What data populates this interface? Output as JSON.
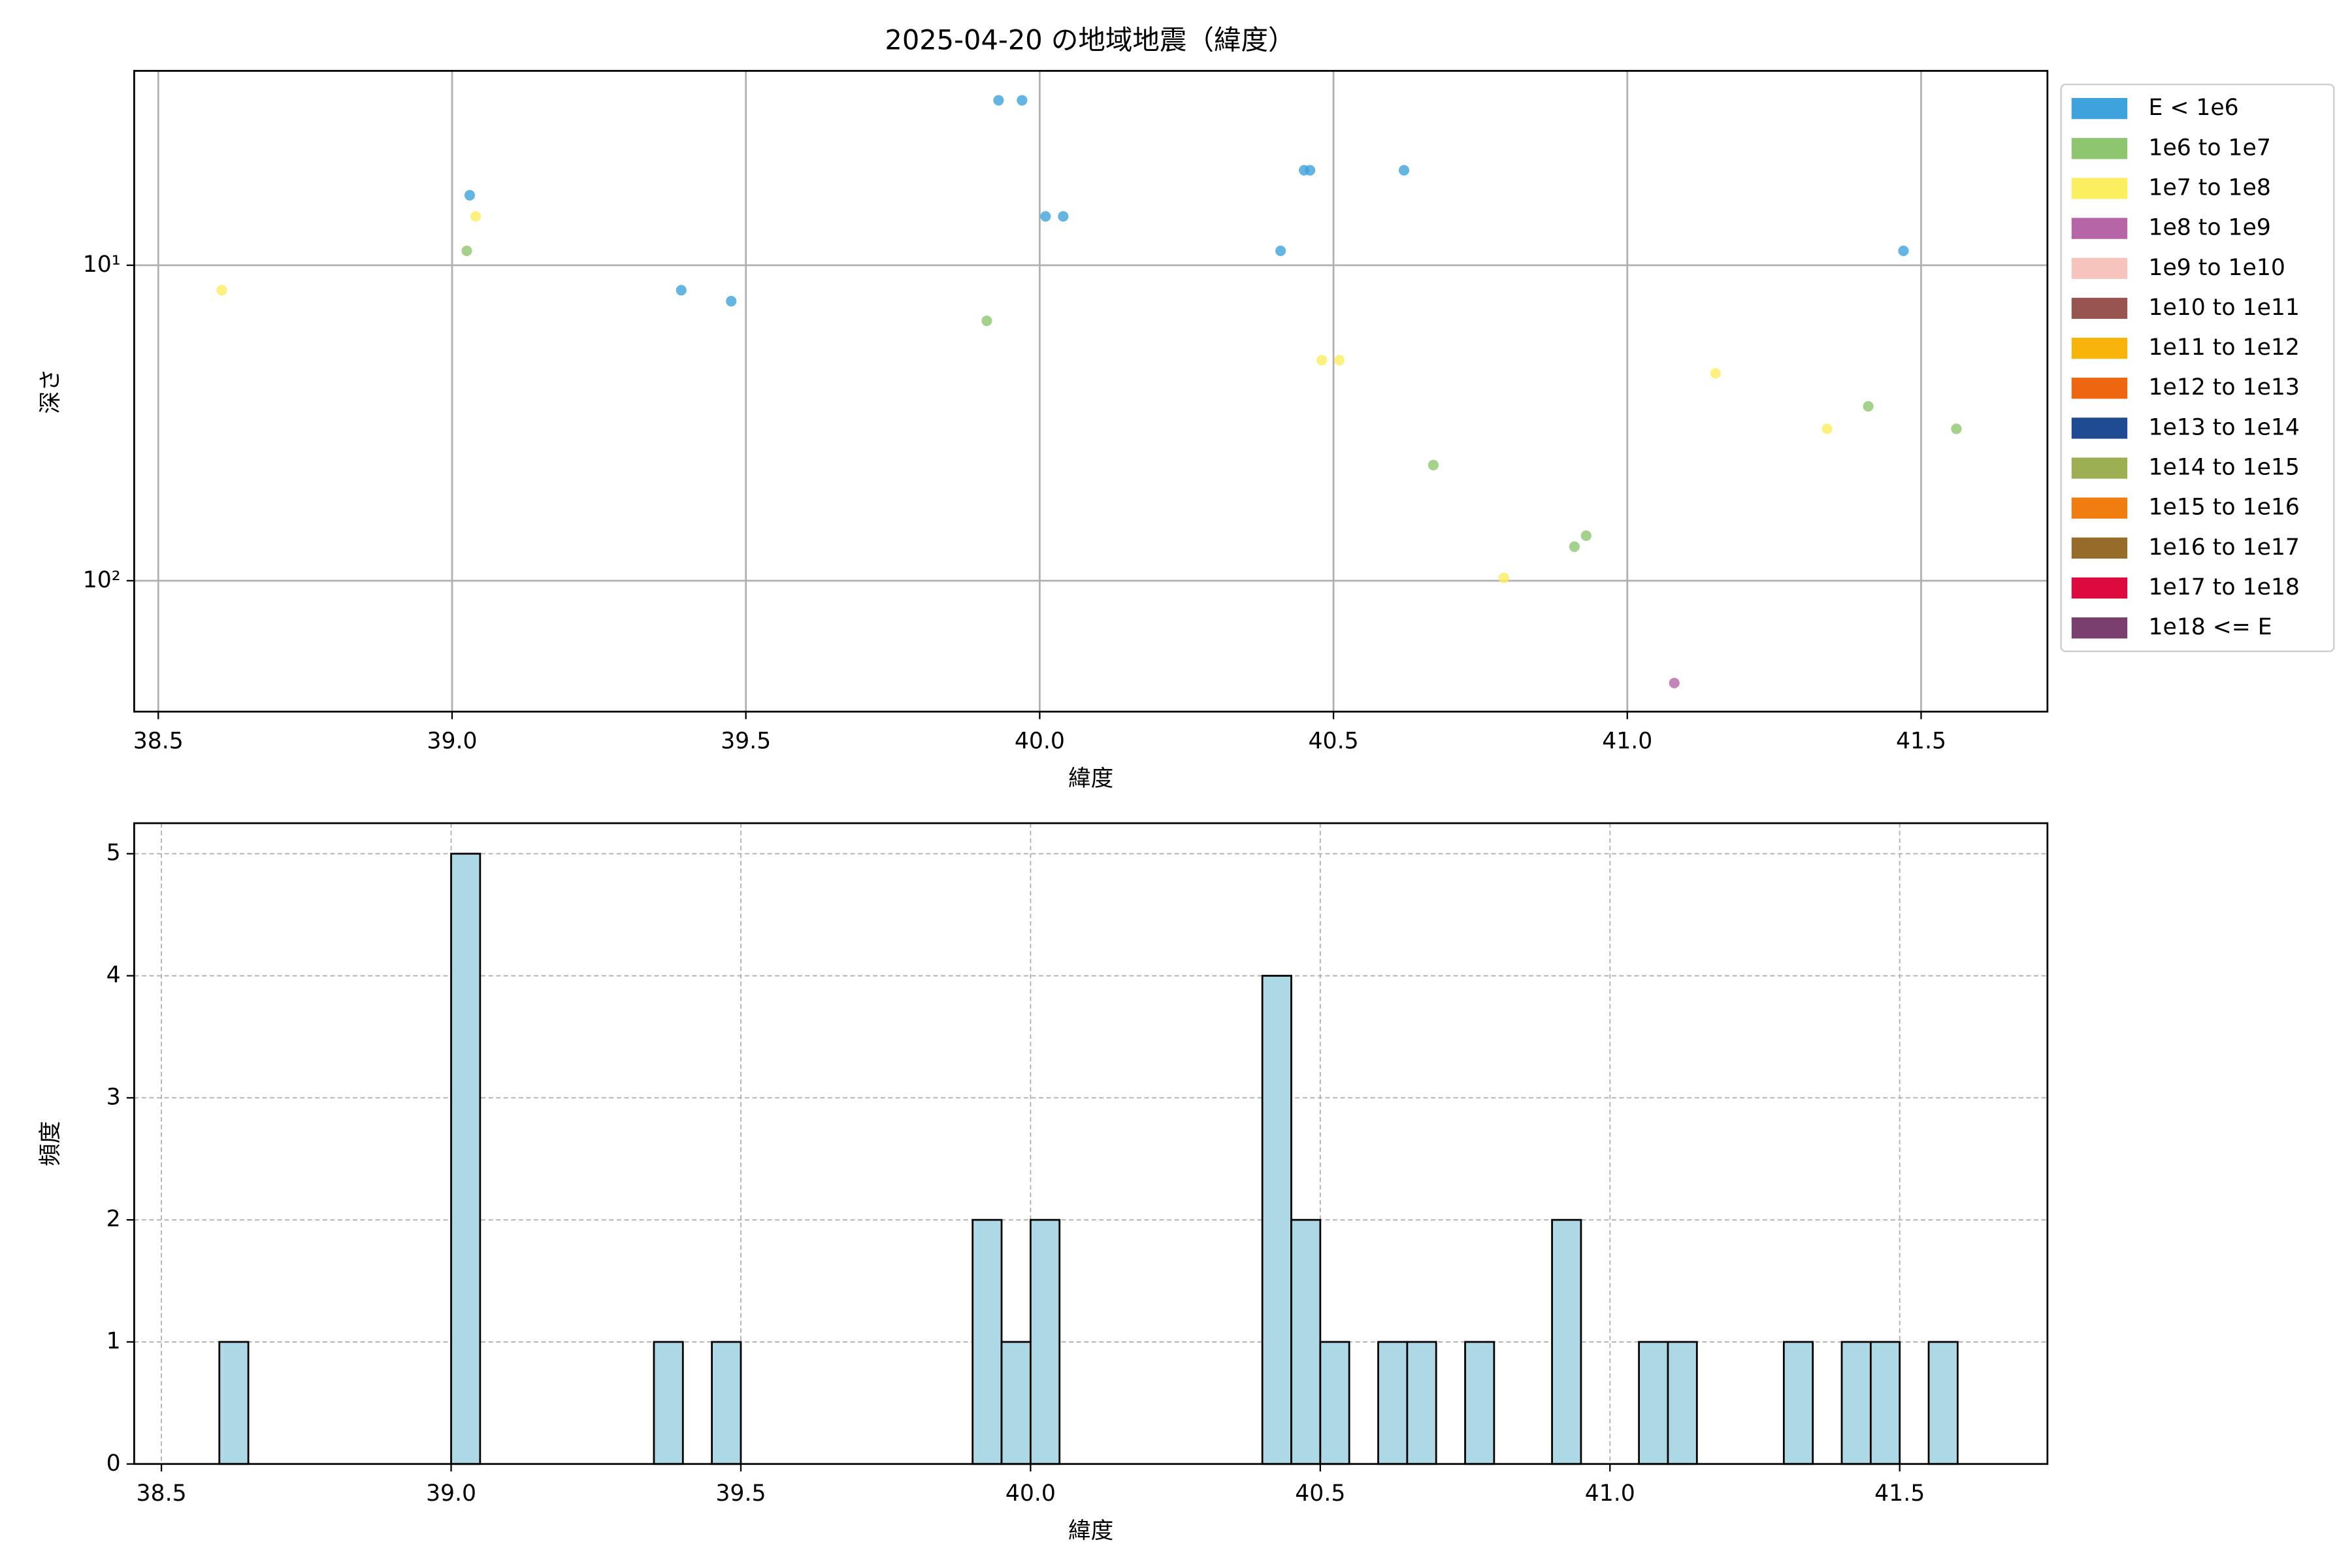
{
  "chart_data": [
    {
      "type": "scatter",
      "title": "2025-04-20 の地域地震（緯度）",
      "x_label": "緯度",
      "y_label": "深さ",
      "yscale": "log",
      "grid": true,
      "legend": "outside right",
      "xlim": [
        38.459,
        41.715
      ],
      "ylim": [
        260,
        2.42
      ],
      "xticks": [
        38.5,
        {
          "value": 39,
          "label": "39.0"
        },
        39.5,
        {
          "value": 40,
          "label": "40.0"
        },
        40.5,
        {
          "value": 41,
          "label": "41.0"
        },
        41.5
      ],
      "yticks": [
        {
          "value": 10,
          "label": "10¹"
        },
        {
          "value": 100,
          "label": "10²"
        }
      ],
      "series": [
        {
          "name": "E < 1e6",
          "color": "#3ea3dc",
          "x": [
            39.03,
            39.39,
            39.475,
            39.93,
            39.97,
            40.01,
            40.04,
            40.45,
            40.46,
            40.41,
            40.62,
            41.47
          ],
          "values": [
            6,
            12,
            13,
            3,
            3,
            7,
            7,
            5,
            5,
            9,
            5,
            9
          ]
        },
        {
          "name": "1e6 to 1e7",
          "color": "#8dc66e",
          "x": [
            39.025,
            39.91,
            40.67,
            40.91,
            40.93,
            41.41,
            41.56
          ],
          "values": [
            9,
            15,
            43,
            78,
            72,
            28,
            33
          ]
        },
        {
          "name": "1e7 to 1e8",
          "color": "#fbee5f",
          "x": [
            38.608,
            39.04,
            40.48,
            40.51,
            40.79,
            41.15,
            41.34
          ],
          "values": [
            12,
            7,
            20,
            20,
            98,
            22,
            33
          ]
        },
        {
          "name": "1e8 to 1e9",
          "color": "#b666a6",
          "x": [
            41.08
          ],
          "values": [
            211
          ]
        },
        {
          "name": "1e9 to 1e10",
          "color": "#f6c3bd",
          "x": [],
          "values": []
        },
        {
          "name": "1e10 to 1e11",
          "color": "#98554f",
          "x": [],
          "values": []
        },
        {
          "name": "1e11 to 1e12",
          "color": "#f8b40a",
          "x": [],
          "values": []
        },
        {
          "name": "1e12 to 1e13",
          "color": "#ef6611",
          "x": [],
          "values": []
        },
        {
          "name": "1e13 to 1e14",
          "color": "#1e4b92",
          "x": [],
          "values": []
        },
        {
          "name": "1e14 to 1e15",
          "color": "#9caf52",
          "x": [],
          "values": []
        },
        {
          "name": "1e15 to 1e16",
          "color": "#ef7d10",
          "x": [],
          "values": []
        },
        {
          "name": "1e16 to 1e17",
          "color": "#976c2b",
          "x": [],
          "values": []
        },
        {
          "name": "1e17 to 1e18",
          "color": "#dc0a3f",
          "x": [],
          "values": []
        },
        {
          "name": "1e18 <= E",
          "color": "#7b3f6e",
          "x": [],
          "values": []
        }
      ]
    },
    {
      "type": "histogram",
      "x_label": "緯度",
      "y_label": "頻度",
      "color": "#add8e6",
      "grid": true,
      "xlim": [
        38.453,
        41.755
      ],
      "ylim": [
        0,
        5.25
      ],
      "xticks": [
        38.5,
        {
          "value": 39,
          "label": "39.0"
        },
        39.5,
        {
          "value": 40,
          "label": "40.0"
        },
        40.5,
        {
          "value": 41,
          "label": "41.0"
        },
        41.5
      ],
      "yticks": [
        0,
        1,
        2,
        3,
        4,
        5
      ],
      "bins": [
        38.6,
        38.65,
        38.7,
        38.75,
        38.8,
        38.85,
        38.9,
        38.95,
        39.0,
        39.05,
        39.1,
        39.15,
        39.2,
        39.25,
        39.3,
        39.35,
        39.4,
        39.45,
        39.5,
        39.55,
        39.6,
        39.65,
        39.7,
        39.75,
        39.8,
        39.85,
        39.9,
        39.95,
        40.0,
        40.05,
        40.1,
        40.15,
        40.2,
        40.25,
        40.3,
        40.35,
        40.4,
        40.45,
        40.5,
        40.55,
        40.6,
        40.65,
        40.7,
        40.75,
        40.8,
        40.85,
        40.9,
        40.95,
        41.0,
        41.05,
        41.1,
        41.15,
        41.2,
        41.25,
        41.3,
        41.35,
        41.4,
        41.45,
        41.5,
        41.55,
        41.6
      ],
      "values": [
        1,
        0,
        0,
        0,
        0,
        0,
        0,
        0,
        5,
        0,
        0,
        0,
        0,
        0,
        0,
        1,
        0,
        1,
        0,
        0,
        0,
        0,
        0,
        0,
        0,
        0,
        2,
        1,
        2,
        0,
        0,
        0,
        0,
        0,
        0,
        0,
        4,
        2,
        1,
        0,
        1,
        1,
        0,
        1,
        0,
        0,
        2,
        0,
        0,
        1,
        1,
        0,
        0,
        0,
        1,
        0,
        1,
        1,
        0,
        1
      ]
    }
  ]
}
